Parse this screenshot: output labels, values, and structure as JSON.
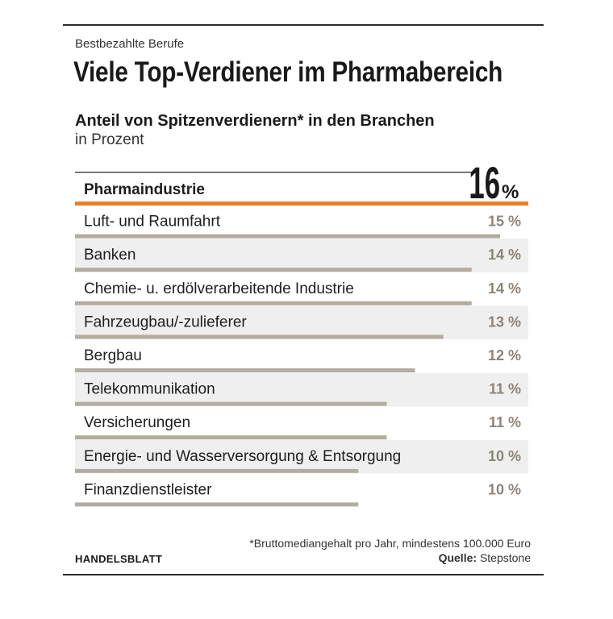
{
  "header": {
    "overline": "Bestbezahlte Berufe",
    "headline": "Viele Top-Verdiener im Pharmabereich",
    "subtitle": "Anteil von Spitzenverdienern* in den Branchen",
    "unit": "in Prozent"
  },
  "chart_data": {
    "type": "bar",
    "orientation": "horizontal",
    "title": "Anteil von Spitzenverdienern* in den Branchen",
    "unit": "in Prozent",
    "xlim": [
      0,
      16
    ],
    "categories": [
      "Pharmaindustrie",
      "Luft- und Raumfahrt",
      "Banken",
      "Chemie- u. erdölverarbeitende Industrie",
      "Fahrzeugbau/-zulieferer",
      "Bergbau",
      "Telekommunikation",
      "Versicherungen",
      "Energie- und Wasserversorgung & Entsorgung",
      "Finanzdienstleister"
    ],
    "values": [
      16,
      15,
      14,
      14,
      13,
      12,
      11,
      11,
      10,
      10
    ],
    "value_labels": [
      "16",
      "15 %",
      "14 %",
      "14 %",
      "13 %",
      "12 %",
      "11 %",
      "11 %",
      "10 %",
      "10 %"
    ],
    "highlight_unit": "%",
    "colors": {
      "highlight": "#f07c2a",
      "bar": "#b3aca1",
      "stripe": "#efefef",
      "value_text": "#8d847a",
      "text": "#1e1e1e"
    }
  },
  "footer": {
    "brand": "HANDELSBLATT",
    "footnote": "*Bruttomediangehalt pro Jahr, mindestens 100.000 Euro",
    "source_label": "Quelle:",
    "source_value": "Stepstone"
  }
}
